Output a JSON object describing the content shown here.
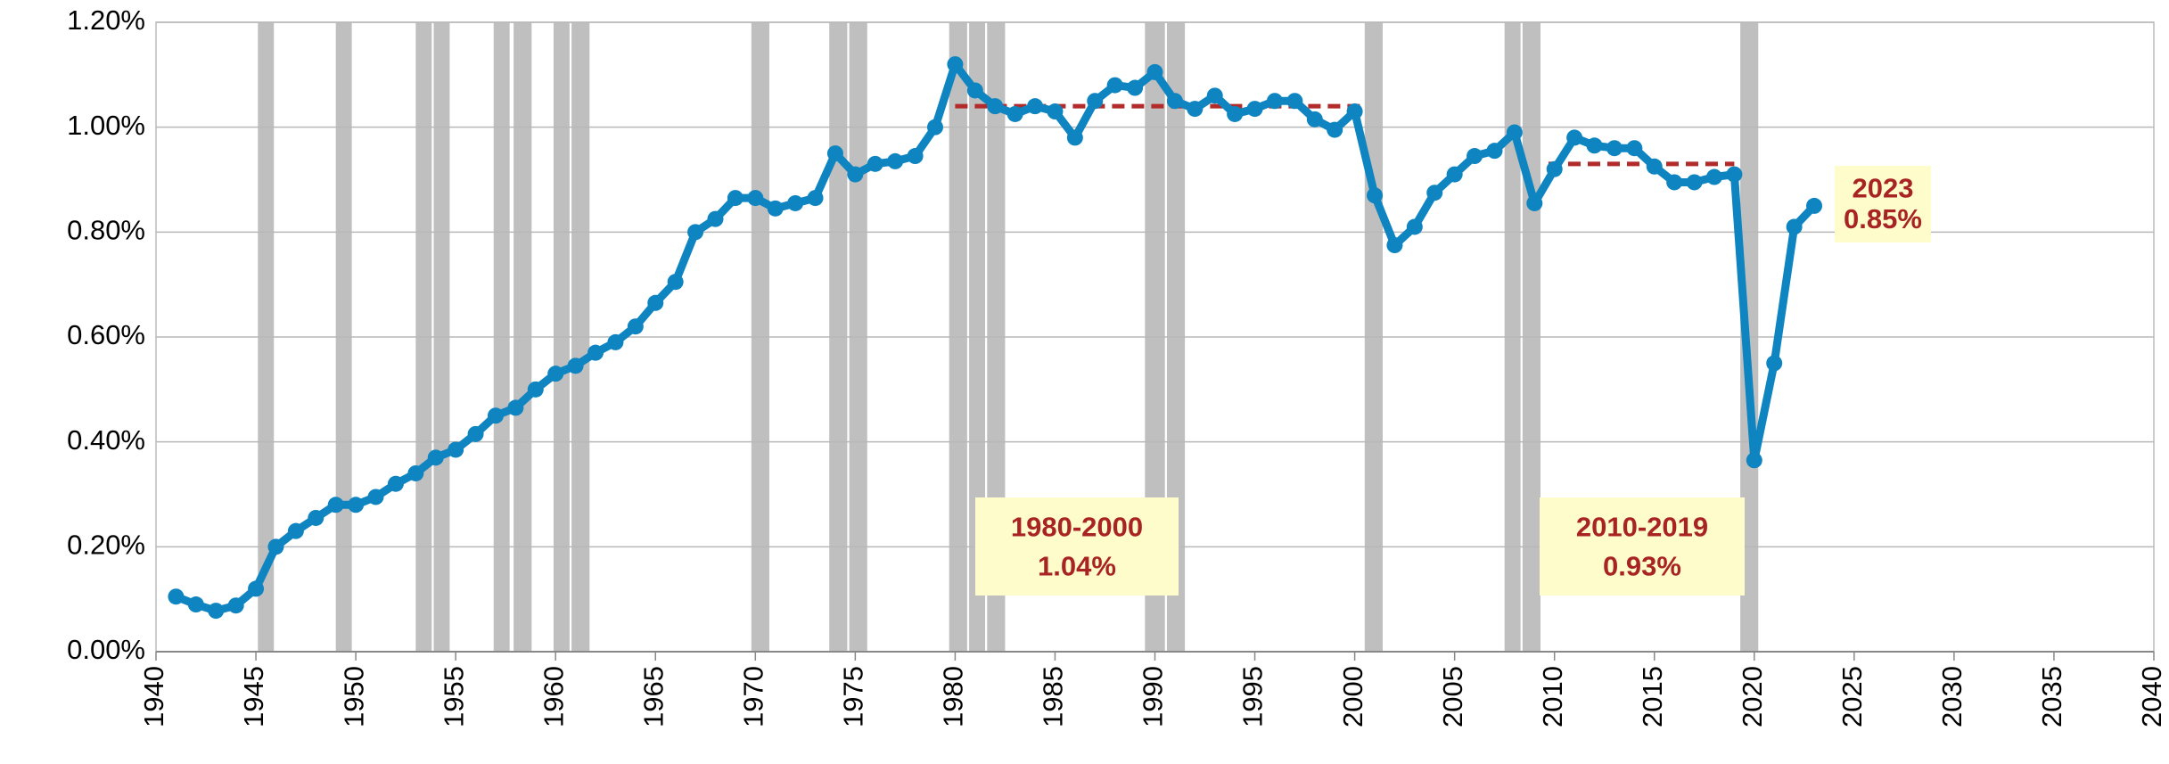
{
  "chart_data": {
    "type": "line",
    "x": [
      1941,
      1942,
      1943,
      1944,
      1945,
      1946,
      1947,
      1948,
      1949,
      1950,
      1951,
      1952,
      1953,
      1954,
      1955,
      1956,
      1957,
      1958,
      1959,
      1960,
      1961,
      1962,
      1963,
      1964,
      1965,
      1966,
      1967,
      1968,
      1969,
      1970,
      1971,
      1972,
      1973,
      1974,
      1975,
      1976,
      1977,
      1978,
      1979,
      1980,
      1981,
      1982,
      1983,
      1984,
      1985,
      1986,
      1987,
      1988,
      1989,
      1990,
      1991,
      1992,
      1993,
      1994,
      1995,
      1996,
      1997,
      1998,
      1999,
      2000,
      2001,
      2002,
      2003,
      2004,
      2005,
      2006,
      2007,
      2008,
      2009,
      2010,
      2011,
      2012,
      2013,
      2014,
      2015,
      2016,
      2017,
      2018,
      2019,
      2020,
      2021,
      2022,
      2023
    ],
    "series": [
      {
        "color": "#0e84c1",
        "values": [
          0.105,
          0.09,
          0.078,
          0.088,
          0.12,
          0.2,
          0.23,
          0.255,
          0.28,
          0.28,
          0.295,
          0.32,
          0.34,
          0.37,
          0.385,
          0.415,
          0.45,
          0.465,
          0.5,
          0.53,
          0.545,
          0.57,
          0.59,
          0.62,
          0.665,
          0.705,
          0.8,
          0.825,
          0.865,
          0.865,
          0.845,
          0.855,
          0.865,
          0.95,
          0.91,
          0.93,
          0.935,
          0.945,
          1.0,
          1.12,
          1.07,
          1.04,
          1.025,
          1.04,
          1.03,
          0.98,
          1.05,
          1.08,
          1.075,
          1.105,
          1.05,
          1.035,
          1.06,
          1.025,
          1.035,
          1.05,
          1.05,
          1.015,
          0.995,
          1.03,
          0.87,
          0.775,
          0.81,
          0.875,
          0.91,
          0.945,
          0.955,
          0.99,
          0.855,
          0.92,
          0.98,
          0.965,
          0.96,
          0.96,
          0.925,
          0.895,
          0.895,
          0.905,
          0.91,
          0.365,
          0.55,
          0.81,
          0.85
        ]
      }
    ],
    "recession_bands": [
      [
        1945.1,
        1945.9
      ],
      [
        1949.0,
        1949.8
      ],
      [
        1953.0,
        1953.8
      ],
      [
        1953.9,
        1954.7
      ],
      [
        1956.9,
        1957.7
      ],
      [
        1957.9,
        1958.8
      ],
      [
        1959.9,
        1960.7
      ],
      [
        1960.8,
        1961.7
      ],
      [
        1969.8,
        1970.7
      ],
      [
        1973.7,
        1974.6
      ],
      [
        1974.7,
        1975.6
      ],
      [
        1979.7,
        1980.6
      ],
      [
        1980.7,
        1981.5
      ],
      [
        1981.6,
        1982.5
      ],
      [
        1989.5,
        1990.5
      ],
      [
        1990.6,
        1991.5
      ],
      [
        2000.5,
        2001.4
      ],
      [
        2007.5,
        2008.3
      ],
      [
        2008.4,
        2009.3
      ],
      [
        2019.3,
        2020.2
      ]
    ],
    "band_color": "#bfbfbf",
    "averages": [
      {
        "period": "1980-2000",
        "value": 1.04,
        "value_label": "1.04%",
        "x": [
          1980,
          2000.3
        ],
        "color": "#b22a2a"
      },
      {
        "period": "2010-2019",
        "value": 0.93,
        "value_label": "0.93%",
        "x": [
          2009.7,
          2019
        ],
        "color": "#b22a2a"
      }
    ],
    "latest": {
      "year": "2023",
      "value_label": "0.85%"
    },
    "xlim": [
      1940,
      2040
    ],
    "xticks": [
      1940,
      1945,
      1950,
      1955,
      1960,
      1965,
      1970,
      1975,
      1980,
      1985,
      1990,
      1995,
      2000,
      2005,
      2010,
      2015,
      2020,
      2025,
      2030,
      2035,
      2040
    ],
    "ylim": [
      0,
      1.2
    ],
    "yticks": [
      {
        "value": 0,
        "label": "0.00%"
      },
      {
        "value": 0.2,
        "label": "0.20%"
      },
      {
        "value": 0.4,
        "label": "0.40%"
      },
      {
        "value": 0.6,
        "label": "0.60%"
      },
      {
        "value": 0.8,
        "label": "0.80%"
      },
      {
        "value": 1.0,
        "label": "1.00%"
      },
      {
        "value": 1.2,
        "label": "1.20%"
      }
    ],
    "grid": true
  }
}
